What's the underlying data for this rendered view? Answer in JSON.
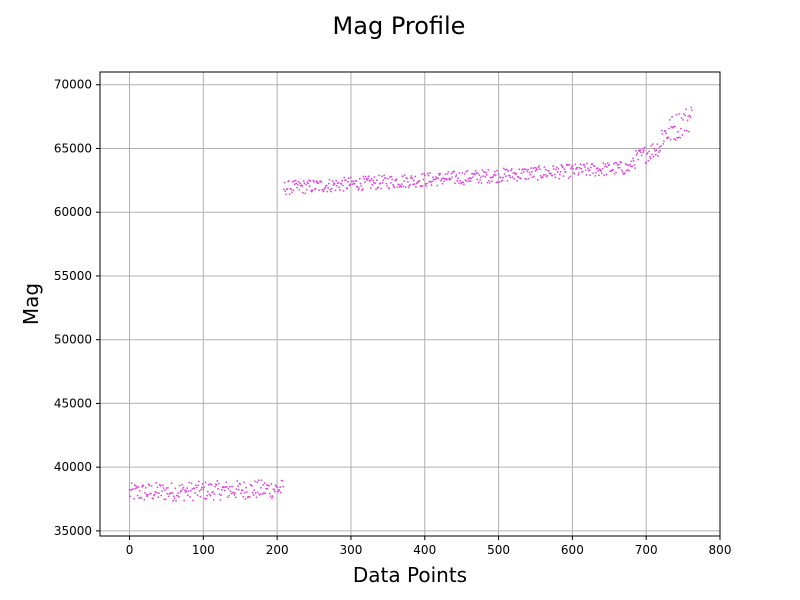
{
  "chart_data": {
    "type": "scatter",
    "title": "Mag Profile",
    "xlabel": "Data Points",
    "ylabel": "Mag",
    "xlim": [
      -40,
      800
    ],
    "ylim": [
      34600,
      71000
    ],
    "xticks": [
      0,
      100,
      200,
      300,
      400,
      500,
      600,
      700,
      800
    ],
    "yticks": [
      35000,
      40000,
      45000,
      50000,
      55000,
      60000,
      65000,
      70000
    ],
    "grid": true,
    "marker_color": "#dd44dd",
    "series": [
      {
        "segments": [
          {
            "x_start": 0,
            "x_end": 208,
            "level_start": 38000,
            "level_end": 38300,
            "spread": 1500
          },
          {
            "x_start": 209,
            "x_end": 680,
            "level_start": 61900,
            "level_end": 63500,
            "spread": 1100
          },
          {
            "x_start": 681,
            "x_end": 720,
            "level_start": 64000,
            "level_end": 65200,
            "spread": 1400
          },
          {
            "x_start": 721,
            "x_end": 762,
            "level_start": 66000,
            "level_end": 67500,
            "spread": 2200
          }
        ]
      }
    ]
  }
}
